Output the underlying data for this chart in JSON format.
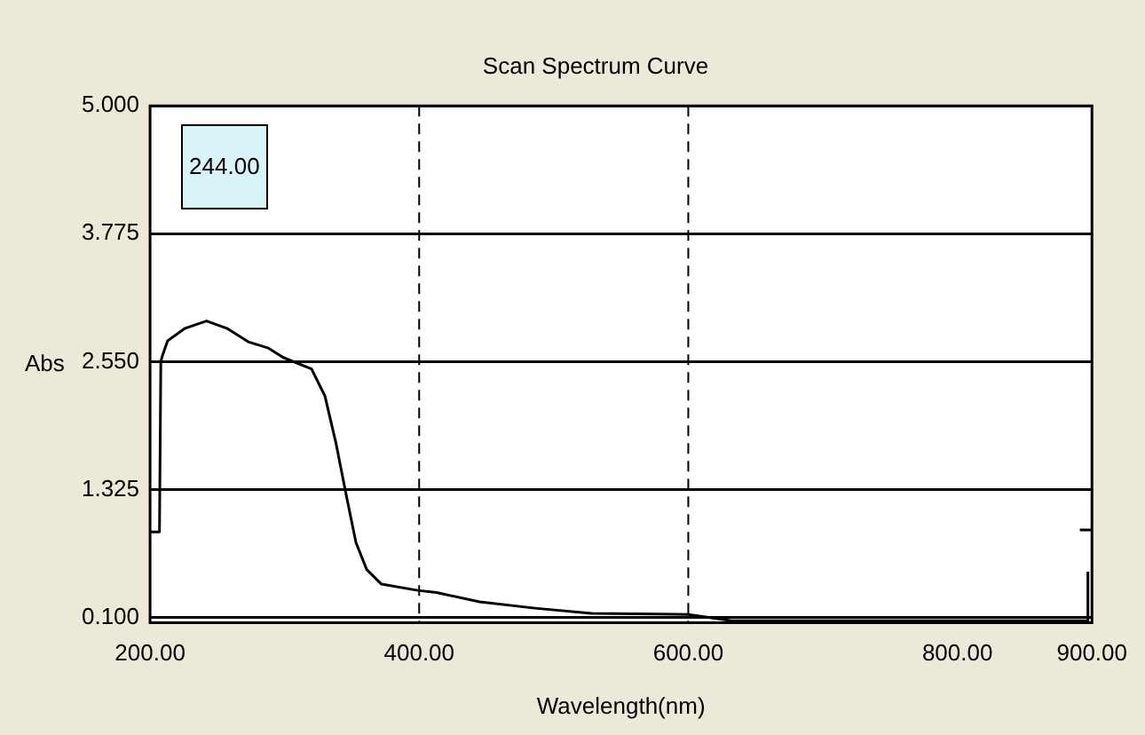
{
  "chart_data": {
    "type": "line",
    "title": "Scan Spectrum Curve",
    "xlabel": "Wavelength(nm)",
    "ylabel": "Abs",
    "annotations": [
      "244.00"
    ],
    "xlim": [
      200,
      900
    ],
    "xticks": [
      {
        "value": 200,
        "label": "200.00"
      },
      {
        "value": 400,
        "label": "400.00"
      },
      {
        "value": 600,
        "label": "600.00"
      },
      {
        "value": 800,
        "label": "800.00"
      },
      {
        "value": 900,
        "label": "900.00"
      }
    ],
    "ylim": [
      0.05,
      5
    ],
    "yticks": [
      {
        "value": 0.1,
        "label": "0.100"
      },
      {
        "value": 1.325,
        "label": "1.325"
      },
      {
        "value": 2.55,
        "label": "2.550"
      },
      {
        "value": 3.775,
        "label": "3.775"
      },
      {
        "value": 5,
        "label": "5.000"
      }
    ],
    "grid": "y",
    "legend": false,
    "marker": "none",
    "line_style": "solid",
    "ref_lines": [
      {
        "axis": "x",
        "value": 400,
        "line_style": "dashed",
        "color": "#000000"
      },
      {
        "axis": "x",
        "value": 600,
        "line_style": "dashed",
        "color": "#000000"
      }
    ],
    "series": [
      {
        "color": "#000000",
        "x": [
          200,
          207,
          208,
          209,
          213,
          226,
          242,
          257,
          273,
          288,
          299,
          320,
          330,
          338,
          346,
          353,
          361,
          372,
          399,
          413,
          445,
          486,
          528,
          600,
          632,
          897,
          897
        ],
        "values": [
          0.92,
          0.92,
          2.55,
          2.6,
          2.75,
          2.87,
          2.94,
          2.87,
          2.74,
          2.68,
          2.59,
          2.48,
          2.22,
          1.78,
          1.26,
          0.82,
          0.56,
          0.42,
          0.36,
          0.34,
          0.25,
          0.19,
          0.14,
          0.13,
          0.07,
          0.07,
          0.54
        ]
      },
      {
        "color": "#000000",
        "x": [
          891,
          900
        ],
        "values": [
          0.94,
          0.94
        ]
      }
    ]
  }
}
